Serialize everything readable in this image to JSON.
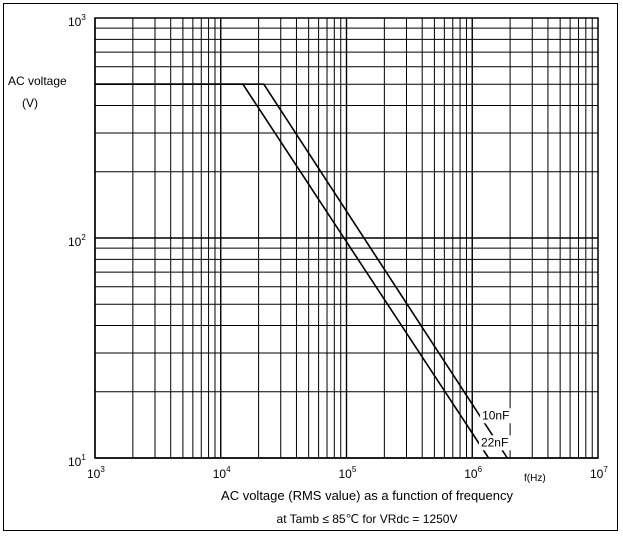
{
  "chart_data": {
    "type": "line",
    "title": "",
    "xlabel": "f(Hz)",
    "ylabel_line1": "AC voltage",
    "ylabel_line2": "(V)",
    "caption_line1": "AC voltage (RMS value) as a function of frequency",
    "caption_line2": "at Tamb ≤ 85℃ for VRdc = 1250V",
    "x_scale": "log",
    "y_scale": "log",
    "xlim": [
      1000,
      10000000
    ],
    "ylim": [
      10,
      1000
    ],
    "grid": true,
    "x_ticks": [
      {
        "base": "10",
        "exp": "3"
      },
      {
        "base": "10",
        "exp": "4"
      },
      {
        "base": "10",
        "exp": "5"
      },
      {
        "base": "10",
        "exp": "6"
      },
      {
        "base": "10",
        "exp": "7"
      }
    ],
    "y_ticks": [
      {
        "base": "10",
        "exp": "1"
      },
      {
        "base": "10",
        "exp": "2"
      },
      {
        "base": "10",
        "exp": "3"
      }
    ],
    "series": [
      {
        "name": "10nF",
        "points": [
          [
            1000,
            500
          ],
          [
            22000,
            500
          ],
          [
            1900000,
            10
          ]
        ]
      },
      {
        "name": "22nF",
        "points": [
          [
            1000,
            500
          ],
          [
            15000,
            500
          ],
          [
            1350000,
            10
          ]
        ]
      }
    ]
  }
}
